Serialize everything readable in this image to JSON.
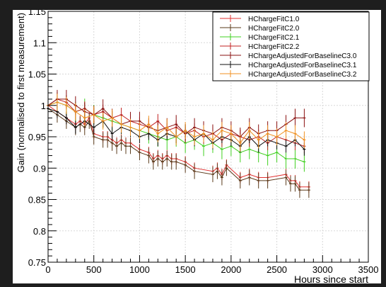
{
  "chart_data": {
    "type": "line",
    "title": "",
    "xlabel": "Hours since start",
    "ylabel": "Gain (normalised to first measurement)",
    "xlim": [
      0,
      3500
    ],
    "ylim": [
      0.75,
      1.15
    ],
    "xticks": [
      0,
      500,
      1000,
      1500,
      2000,
      2500,
      3000,
      3500
    ],
    "xtick_labels": [
      "0",
      "500",
      "1000",
      "1500",
      "2000",
      "2500",
      "3000",
      "3500"
    ],
    "yticks": [
      0.75,
      0.8,
      0.85,
      0.9,
      0.95,
      1.0,
      1.05,
      1.1,
      1.15
    ],
    "ytick_labels": [
      "0.75",
      "0.8",
      "0.85",
      "0.9",
      "0.95",
      "1",
      "1.05",
      "1.1",
      "1.15"
    ],
    "grid": true,
    "legend_position": "top-right",
    "series": [
      {
        "name": "HChargeFitC1.0",
        "color": "#e03030",
        "x": [
          0,
          100,
          200,
          300,
          350,
          400,
          450,
          500,
          600,
          650,
          700,
          750,
          800,
          850,
          900,
          1000,
          1100,
          1150,
          1200,
          1250,
          1300,
          1350,
          1400,
          1500,
          1600,
          1800,
          1850,
          1900,
          1950,
          2100,
          2200,
          2300,
          2400,
          2600,
          2650,
          2700,
          2750,
          2850
        ],
        "y": [
          1.0,
          0.99,
          0.98,
          0.97,
          0.975,
          0.97,
          0.98,
          0.955,
          0.95,
          0.95,
          0.945,
          0.94,
          0.945,
          0.94,
          0.94,
          0.93,
          0.925,
          0.915,
          0.92,
          0.915,
          0.92,
          0.915,
          0.915,
          0.91,
          0.9,
          0.895,
          0.9,
          0.89,
          0.905,
          0.885,
          0.89,
          0.885,
          0.885,
          0.89,
          0.88,
          0.88,
          0.87,
          0.87
        ]
      },
      {
        "name": "HChargeFitC2.0",
        "color": "#5a3a1a",
        "x": [
          0,
          100,
          200,
          300,
          350,
          400,
          450,
          500,
          600,
          650,
          700,
          750,
          800,
          850,
          900,
          1000,
          1100,
          1150,
          1200,
          1250,
          1300,
          1350,
          1400,
          1500,
          1600,
          1800,
          1850,
          1900,
          1950,
          2100,
          2200,
          2300,
          2400,
          2600,
          2650,
          2700,
          2750,
          2850
        ],
        "y": [
          0.995,
          0.985,
          0.975,
          0.965,
          0.97,
          0.965,
          0.975,
          0.95,
          0.945,
          0.945,
          0.94,
          0.935,
          0.94,
          0.935,
          0.935,
          0.925,
          0.92,
          0.91,
          0.915,
          0.91,
          0.915,
          0.91,
          0.91,
          0.905,
          0.895,
          0.89,
          0.895,
          0.885,
          0.9,
          0.88,
          0.885,
          0.88,
          0.88,
          0.885,
          0.875,
          0.875,
          0.865,
          0.865
        ]
      },
      {
        "name": "HChargeFitC2.1",
        "color": "#40d020",
        "x": [
          0,
          100,
          200,
          300,
          400,
          500,
          600,
          700,
          800,
          900,
          1000,
          1100,
          1200,
          1300,
          1400,
          1500,
          1600,
          1700,
          1800,
          1900,
          2000,
          2100,
          2200,
          2300,
          2400,
          2500,
          2600,
          2700,
          2800
        ],
        "y": [
          1.0,
          1.005,
          1.0,
          0.99,
          0.995,
          0.985,
          0.98,
          0.975,
          0.97,
          0.965,
          0.96,
          0.955,
          0.95,
          0.945,
          0.95,
          0.94,
          0.945,
          0.935,
          0.94,
          0.93,
          0.935,
          0.925,
          0.93,
          0.925,
          0.92,
          0.925,
          0.915,
          0.915,
          0.91
        ]
      },
      {
        "name": "HChargeFitC2.2",
        "color": "#c02020",
        "x": [
          0,
          100,
          200,
          300,
          400,
          500,
          600,
          700,
          800,
          900,
          1000,
          1100,
          1200,
          1300,
          1400,
          1500,
          1600,
          1700,
          1800,
          1900,
          2000,
          2100,
          2200,
          2300,
          2400,
          2500,
          2600,
          2700,
          2800
        ],
        "y": [
          1.0,
          1.01,
          1.005,
          0.99,
          0.995,
          0.985,
          0.99,
          0.98,
          0.985,
          0.975,
          0.97,
          0.965,
          0.975,
          0.96,
          0.965,
          0.955,
          0.96,
          0.95,
          0.955,
          0.945,
          0.955,
          0.95,
          0.945,
          0.95,
          0.94,
          0.95,
          0.945,
          0.94,
          0.935
        ]
      },
      {
        "name": "HChargeAdjustedForBaselineC3.0",
        "color": "#8a1010",
        "x": [
          0,
          100,
          200,
          300,
          400,
          500,
          600,
          700,
          800,
          900,
          1000,
          1100,
          1200,
          1300,
          1400,
          1500,
          1600,
          1700,
          1800,
          1900,
          2000,
          2100,
          2200,
          2300,
          2400,
          2500,
          2600,
          2700,
          2800
        ],
        "y": [
          1.0,
          1.01,
          1.01,
          1.0,
          0.99,
          0.985,
          0.995,
          0.98,
          0.97,
          0.975,
          0.975,
          0.965,
          0.96,
          0.965,
          0.97,
          0.955,
          0.965,
          0.96,
          0.955,
          0.965,
          0.96,
          0.95,
          0.965,
          0.955,
          0.96,
          0.96,
          0.97,
          0.98,
          0.98
        ]
      },
      {
        "name": "HChargeAdjustedForBaselineC3.1",
        "color": "#101010",
        "x": [
          0,
          100,
          200,
          300,
          400,
          500,
          600,
          700,
          800,
          900,
          1000,
          1100,
          1200,
          1300,
          1400,
          1500,
          1600,
          1700,
          1800,
          1900,
          2000,
          2100,
          2200,
          2300,
          2400,
          2500,
          2600,
          2700,
          2800
        ],
        "y": [
          0.995,
          0.99,
          0.98,
          0.965,
          0.975,
          0.965,
          0.975,
          0.955,
          0.965,
          0.96,
          0.95,
          0.955,
          0.945,
          0.955,
          0.95,
          0.96,
          0.945,
          0.955,
          0.94,
          0.95,
          0.945,
          0.935,
          0.95,
          0.935,
          0.945,
          0.94,
          0.935,
          0.945,
          0.93
        ]
      },
      {
        "name": "HChargeAdjustedForBaselineC3.2",
        "color": "#f09020",
        "x": [
          0,
          100,
          200,
          300,
          400,
          500,
          600,
          700,
          800,
          900,
          1000,
          1100,
          1200,
          1300,
          1400,
          1500,
          1600,
          1700,
          1800,
          1900,
          2000,
          2100,
          2200,
          2300,
          2400,
          2500,
          2600,
          2700,
          2800
        ],
        "y": [
          1.0,
          1.005,
          1.0,
          0.99,
          0.98,
          0.985,
          0.975,
          0.98,
          0.97,
          0.965,
          0.96,
          0.97,
          0.955,
          0.965,
          0.95,
          0.96,
          0.95,
          0.955,
          0.945,
          0.96,
          0.955,
          0.94,
          0.96,
          0.945,
          0.955,
          0.95,
          0.96,
          0.955,
          0.945
        ]
      }
    ]
  }
}
